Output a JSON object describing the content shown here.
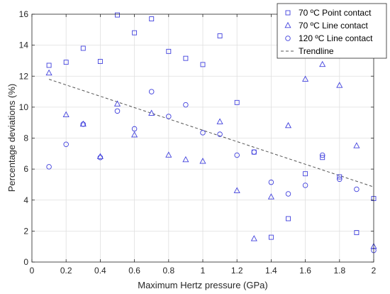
{
  "chart_data": {
    "type": "scatter",
    "xlabel": "Maximum Hertz pressure (GPa)",
    "ylabel": "Percentage deviations (%)",
    "xlim": [
      0,
      2
    ],
    "ylim": [
      0,
      16
    ],
    "xticks": [
      "0",
      "0.2",
      "0.4",
      "0.6",
      "0.8",
      "1",
      "1.2",
      "1.4",
      "1.6",
      "1.8",
      "2"
    ],
    "yticks": [
      "0",
      "2",
      "4",
      "6",
      "8",
      "10",
      "12",
      "14",
      "16"
    ],
    "grid": true,
    "legend_position": "top-right",
    "color": "#4040dd",
    "series": [
      {
        "name": "70 ºC Point contact",
        "marker": "square",
        "points": [
          [
            0.1,
            12.7
          ],
          [
            0.2,
            12.9
          ],
          [
            0.3,
            13.8
          ],
          [
            0.4,
            12.95
          ],
          [
            0.5,
            15.95
          ],
          [
            0.6,
            14.8
          ],
          [
            0.7,
            15.7
          ],
          [
            0.8,
            13.6
          ],
          [
            0.9,
            13.15
          ],
          [
            1.0,
            12.75
          ],
          [
            1.1,
            14.6
          ],
          [
            1.2,
            10.3
          ],
          [
            1.3,
            7.1
          ],
          [
            1.4,
            1.6
          ],
          [
            1.5,
            2.8
          ],
          [
            1.6,
            5.7
          ],
          [
            1.7,
            6.75
          ],
          [
            1.8,
            5.5
          ],
          [
            1.9,
            1.9
          ],
          [
            2.0,
            4.1
          ]
        ]
      },
      {
        "name": "70 ºC Line contact",
        "marker": "triangle",
        "points": [
          [
            0.1,
            12.2
          ],
          [
            0.2,
            9.5
          ],
          [
            0.3,
            8.9
          ],
          [
            0.4,
            6.8
          ],
          [
            0.5,
            10.2
          ],
          [
            0.6,
            8.2
          ],
          [
            0.7,
            9.6
          ],
          [
            0.8,
            6.9
          ],
          [
            0.9,
            6.6
          ],
          [
            1.0,
            6.5
          ],
          [
            1.1,
            9.05
          ],
          [
            1.2,
            4.6
          ],
          [
            1.3,
            1.5
          ],
          [
            1.4,
            4.2
          ],
          [
            1.5,
            8.8
          ],
          [
            1.6,
            11.8
          ],
          [
            1.7,
            12.75
          ],
          [
            1.8,
            11.4
          ],
          [
            1.9,
            7.5
          ],
          [
            2.0,
            1.0
          ]
        ]
      },
      {
        "name": "120 ºC Line contact",
        "marker": "circle",
        "points": [
          [
            0.1,
            6.15
          ],
          [
            0.2,
            7.6
          ],
          [
            0.3,
            8.9
          ],
          [
            0.4,
            6.75
          ],
          [
            0.5,
            9.75
          ],
          [
            0.6,
            8.6
          ],
          [
            0.7,
            11.0
          ],
          [
            0.8,
            9.4
          ],
          [
            0.9,
            10.15
          ],
          [
            1.0,
            8.35
          ],
          [
            1.1,
            8.25
          ],
          [
            1.2,
            6.9
          ],
          [
            1.3,
            7.1
          ],
          [
            1.4,
            5.15
          ],
          [
            1.5,
            4.4
          ],
          [
            1.6,
            4.95
          ],
          [
            1.7,
            6.9
          ],
          [
            1.8,
            5.35
          ],
          [
            1.9,
            4.7
          ],
          [
            2.0,
            0.75
          ]
        ]
      }
    ],
    "trendline": {
      "name": "Trendline",
      "style": "dashed",
      "x": [
        0.1,
        2.0
      ],
      "y": [
        11.8,
        4.85
      ],
      "color": "#555555"
    }
  }
}
